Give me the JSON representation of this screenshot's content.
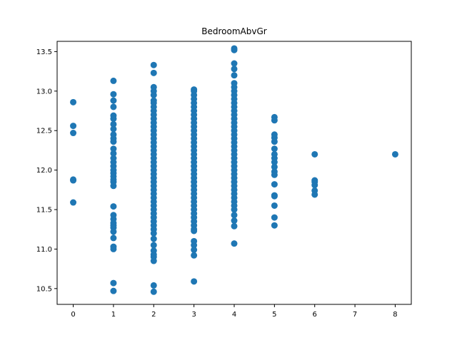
{
  "chart_data": {
    "type": "scatter",
    "title": "BedroomAbvGr",
    "xlabel": "",
    "ylabel": "",
    "xlim": [
      -0.4,
      8.4
    ],
    "ylim": [
      10.3,
      13.63
    ],
    "xticks": [
      0,
      1,
      2,
      3,
      4,
      5,
      6,
      7,
      8
    ],
    "yticks": [
      10.5,
      11.0,
      11.5,
      12.0,
      12.5,
      13.0,
      13.5
    ],
    "ytick_labels": [
      "10.5",
      "11.0",
      "11.5",
      "12.0",
      "12.5",
      "13.0",
      "13.5"
    ],
    "grid": false,
    "marker_color": "#1f77b4",
    "series": [
      {
        "points": [
          {
            "x": 0,
            "ys": [
              12.86,
              12.56,
              12.47,
              11.88,
              11.87,
              11.59
            ]
          },
          {
            "x": 1,
            "ys": [
              13.13,
              12.96,
              12.88,
              12.8,
              12.69,
              12.65,
              12.58,
              12.52,
              12.45,
              12.4,
              12.36,
              12.27,
              12.21,
              12.15,
              12.1,
              12.05,
              12.0,
              11.96,
              11.92,
              11.88,
              11.85,
              11.8,
              11.54,
              11.43,
              11.38,
              11.33,
              11.3,
              11.27,
              11.22,
              11.14,
              11.03,
              11.0,
              10.57,
              10.47
            ]
          },
          {
            "x": 2,
            "ys": [
              13.33,
              13.23,
              13.05,
              13.0,
              12.95,
              12.88,
              12.85,
              12.8,
              12.75,
              12.7,
              12.65,
              12.6,
              12.55,
              12.5,
              12.45,
              12.4,
              12.35,
              12.3,
              12.25,
              12.2,
              12.15,
              12.1,
              12.05,
              12.0,
              11.95,
              11.9,
              11.85,
              11.8,
              11.75,
              11.7,
              11.65,
              11.6,
              11.55,
              11.5,
              11.45,
              11.4,
              11.35,
              11.3,
              11.25,
              11.2,
              11.13,
              11.05,
              10.98,
              10.93,
              10.9,
              10.85,
              10.54,
              10.46
            ]
          },
          {
            "x": 3,
            "ys": [
              13.02,
              13.0,
              12.95,
              12.9,
              12.85,
              12.8,
              12.75,
              12.7,
              12.65,
              12.6,
              12.55,
              12.5,
              12.45,
              12.4,
              12.35,
              12.3,
              12.25,
              12.2,
              12.15,
              12.1,
              12.05,
              12.0,
              11.95,
              11.9,
              11.85,
              11.8,
              11.75,
              11.7,
              11.65,
              11.6,
              11.55,
              11.5,
              11.45,
              11.4,
              11.35,
              11.3,
              11.25,
              11.23,
              11.1,
              11.05,
              10.99,
              10.92,
              10.59
            ]
          },
          {
            "x": 4,
            "ys": [
              13.54,
              13.52,
              13.35,
              13.28,
              13.2,
              13.1,
              13.05,
              13.0,
              12.95,
              12.9,
              12.85,
              12.8,
              12.75,
              12.7,
              12.65,
              12.6,
              12.55,
              12.5,
              12.45,
              12.4,
              12.35,
              12.3,
              12.25,
              12.2,
              12.15,
              12.1,
              12.05,
              12.0,
              11.95,
              11.9,
              11.85,
              11.8,
              11.75,
              11.7,
              11.65,
              11.6,
              11.55,
              11.5,
              11.43,
              11.36,
              11.29,
              11.07
            ]
          },
          {
            "x": 5,
            "ys": [
              12.67,
              12.63,
              12.45,
              12.41,
              12.36,
              12.27,
              12.2,
              12.15,
              12.1,
              12.04,
              11.98,
              11.94,
              11.82,
              11.68,
              11.67,
              11.55,
              11.4,
              11.3
            ]
          },
          {
            "x": 6,
            "ys": [
              12.2,
              11.87,
              11.85,
              11.81,
              11.74,
              11.69
            ]
          },
          {
            "x": 8,
            "ys": [
              12.2
            ]
          }
        ]
      }
    ]
  }
}
